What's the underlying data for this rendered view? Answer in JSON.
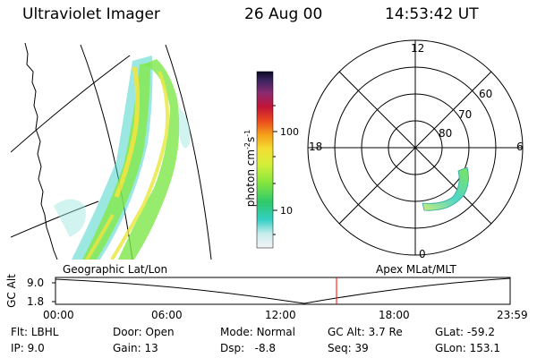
{
  "header": {
    "title": "Ultraviolet Imager",
    "date": "26 Aug 00",
    "time": "14:53:42 UT"
  },
  "geo_panel": {
    "label": "Geographic Lat/Lon"
  },
  "colorbar": {
    "unit": "photon cm",
    "unit_exp1": "-2",
    "unit_mid": "s",
    "unit_exp2": "-1",
    "ticks": [
      "100",
      "10"
    ]
  },
  "polar_panel": {
    "label": "Apex MLat/MLT",
    "mlt_labels": {
      "top": "12",
      "left": "18",
      "right": "6",
      "bottom": "0"
    },
    "lat_labels": [
      "60",
      "70",
      "80"
    ]
  },
  "altitude_plot": {
    "ylabel": "GC Alt",
    "yticks": [
      "9.0",
      "1.8"
    ],
    "xticks": [
      "00:00",
      "06:00",
      "12:00",
      "18:00",
      "23:59"
    ]
  },
  "info": {
    "filter": {
      "label": "Flt:",
      "value": "LBHL"
    },
    "ip": {
      "label": "IP:",
      "value": "9.0"
    },
    "door": {
      "label": "Door:",
      "value": "Open"
    },
    "gain": {
      "label": "Gain:",
      "value": "13"
    },
    "mode": {
      "label": "Mode:",
      "value": "Normal"
    },
    "dsp": {
      "label": "Dsp:",
      "value": "-8.8"
    },
    "gc_alt": {
      "label": "GC Alt:",
      "value": "3.7 Re"
    },
    "seq": {
      "label": "Seq:",
      "value": "39"
    },
    "glat": {
      "label": "GLat:",
      "value": "-59.2"
    },
    "glon": {
      "label": "GLon:",
      "value": "153.1"
    }
  },
  "colors": {
    "line": "#000000",
    "marker": "#ff0000",
    "aurora_low": "#3fd1c9",
    "aurora_mid": "#7ee84a",
    "aurora_high": "#f2e436"
  }
}
